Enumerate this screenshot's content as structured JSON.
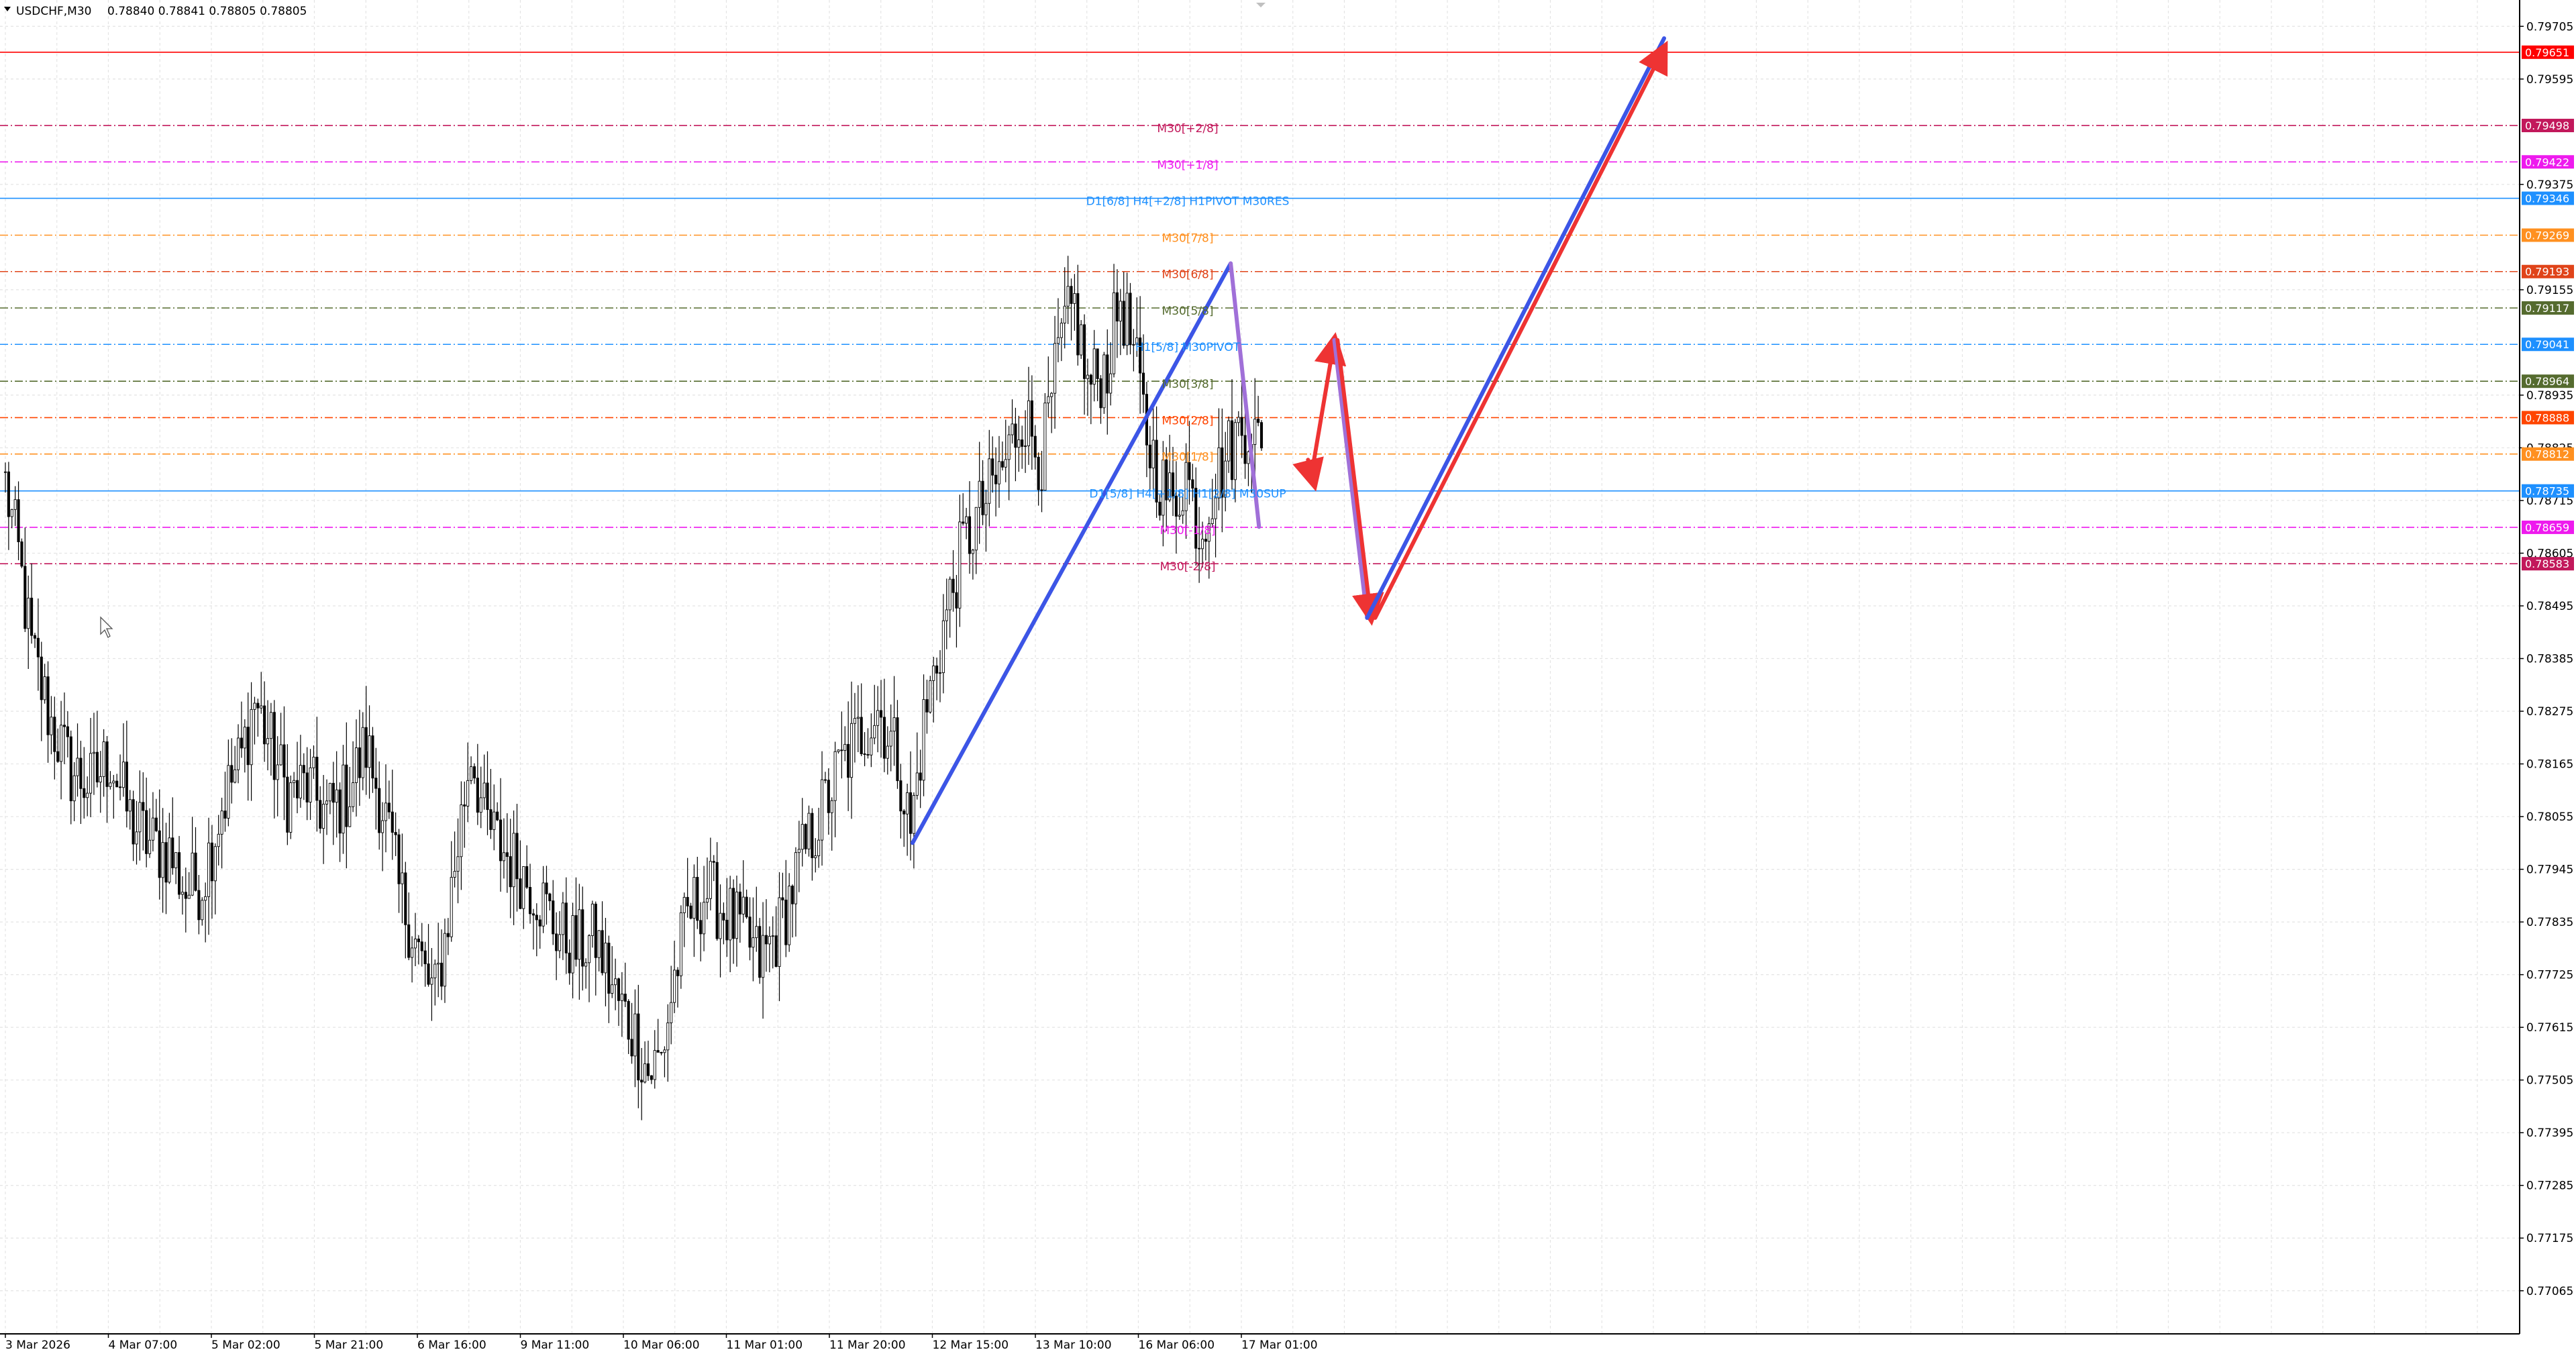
{
  "header": {
    "symbol_timeframe": "USDCHF,M30",
    "ohlc": "0.78840 0.78841 0.78805 0.78805"
  },
  "chart_data": {
    "type": "candlestick",
    "symbol": "USDCHF",
    "timeframe": "M30",
    "ylim": [
      0.76975,
      0.7976
    ],
    "grid": true,
    "price_axis_ticks": [
      "0.79705",
      "0.79595",
      "0.79375",
      "0.79155",
      "0.78935",
      "0.78825",
      "0.78715",
      "0.78605",
      "0.78495",
      "0.78385",
      "0.78275",
      "0.78165",
      "0.78055",
      "0.77945",
      "0.77835",
      "0.77725",
      "0.77615",
      "0.77505",
      "0.77395",
      "0.77285",
      "0.77175",
      "0.77065"
    ],
    "time_axis_ticks": [
      "3 Mar 2026",
      "4 Mar 07:00",
      "5 Mar 02:00",
      "5 Mar 21:00",
      "6 Mar 16:00",
      "9 Mar 11:00",
      "10 Mar 06:00",
      "11 Mar 01:00",
      "11 Mar 20:00",
      "12 Mar 15:00",
      "13 Mar 10:00",
      "16 Mar 06:00",
      "17 Mar 01:00"
    ],
    "close_anchors": [
      [
        0,
        0.7875
      ],
      [
        4,
        0.786
      ],
      [
        8,
        0.784
      ],
      [
        14,
        0.7825
      ],
      [
        20,
        0.7815
      ],
      [
        26,
        0.7812
      ],
      [
        32,
        0.7818
      ],
      [
        38,
        0.7805
      ],
      [
        44,
        0.78
      ],
      [
        50,
        0.7798
      ],
      [
        55,
        0.779
      ],
      [
        60,
        0.7792
      ],
      [
        66,
        0.7808
      ],
      [
        72,
        0.7818
      ],
      [
        76,
        0.783
      ],
      [
        80,
        0.7822
      ],
      [
        86,
        0.781
      ],
      [
        92,
        0.7812
      ],
      [
        98,
        0.7806
      ],
      [
        104,
        0.781
      ],
      [
        110,
        0.782
      ],
      [
        116,
        0.7805
      ],
      [
        120,
        0.779
      ],
      [
        124,
        0.7782
      ],
      [
        128,
        0.7772
      ],
      [
        131,
        0.7768
      ],
      [
        134,
        0.778
      ],
      [
        138,
        0.78
      ],
      [
        142,
        0.782
      ],
      [
        146,
        0.7805
      ],
      [
        150,
        0.78
      ],
      [
        156,
        0.7795
      ],
      [
        162,
        0.779
      ],
      [
        168,
        0.7782
      ],
      [
        174,
        0.7778
      ],
      [
        180,
        0.778
      ],
      [
        186,
        0.7768
      ],
      [
        192,
        0.776
      ],
      [
        196,
        0.7752
      ],
      [
        200,
        0.7755
      ],
      [
        204,
        0.7772
      ],
      [
        208,
        0.7785
      ],
      [
        214,
        0.779
      ],
      [
        220,
        0.7785
      ],
      [
        226,
        0.778
      ],
      [
        230,
        0.7775
      ],
      [
        236,
        0.7782
      ],
      [
        242,
        0.7795
      ],
      [
        248,
        0.7805
      ],
      [
        254,
        0.7815
      ],
      [
        260,
        0.7822
      ],
      [
        266,
        0.7828
      ],
      [
        272,
        0.7818
      ],
      [
        276,
        0.7802
      ],
      [
        280,
        0.7825
      ],
      [
        286,
        0.7845
      ],
      [
        292,
        0.7862
      ],
      [
        298,
        0.787
      ],
      [
        304,
        0.7878
      ],
      [
        310,
        0.789
      ],
      [
        316,
        0.788
      ],
      [
        322,
        0.7905
      ],
      [
        326,
        0.7912
      ],
      [
        330,
        0.7895
      ],
      [
        336,
        0.79
      ],
      [
        340,
        0.7914
      ],
      [
        344,
        0.7902
      ],
      [
        348,
        0.7885
      ],
      [
        352,
        0.7876
      ],
      [
        356,
        0.787
      ],
      [
        360,
        0.7878
      ],
      [
        364,
        0.7865
      ],
      [
        368,
        0.7874
      ],
      [
        372,
        0.788
      ],
      [
        376,
        0.7886
      ],
      [
        380,
        0.7888
      ],
      [
        383,
        0.788
      ]
    ],
    "levels": [
      {
        "label": "",
        "tag": "0.79651",
        "price": 0.79651,
        "color": "#ff0000",
        "style": "solid",
        "label_align": "none"
      },
      {
        "label": "M30[+2/8]",
        "tag": "0.79498",
        "price": 0.79498,
        "color": "#c2185b",
        "style": "dashdot",
        "label_align": "center"
      },
      {
        "label": "M30[+1/8]",
        "tag": "0.79422",
        "price": 0.79422,
        "color": "#ee1aee",
        "style": "dashdot",
        "label_align": "center"
      },
      {
        "label": "D1[6/8] H4[+2/8] H1PIVOT M30RES",
        "tag": "0.79346",
        "price": 0.79346,
        "color": "#1e90ff",
        "style": "solid",
        "label_align": "center"
      },
      {
        "label": "M30[7/8]",
        "tag": "0.79269",
        "price": 0.79269,
        "color": "#ff9020",
        "style": "dashdot",
        "label_align": "center"
      },
      {
        "label": "M30[6/8]",
        "tag": "0.79193",
        "price": 0.79193,
        "color": "#e0441a",
        "style": "dashdot",
        "label_align": "center"
      },
      {
        "label": "M30[5/8]",
        "tag": "0.79117",
        "price": 0.79117,
        "color": "#556b2f",
        "style": "dashdot",
        "label_align": "center"
      },
      {
        "label": "H1[5/8] M30PIVOT",
        "tag": "0.79041",
        "price": 0.79041,
        "color": "#1e90ff",
        "style": "dashdot",
        "label_align": "center"
      },
      {
        "label": "M30[3/8]",
        "tag": "0.78964",
        "price": 0.78964,
        "color": "#556b2f",
        "style": "dashdot",
        "label_align": "center"
      },
      {
        "label": "M30[2/8]",
        "tag": "0.78888",
        "price": 0.78888,
        "color": "#ff4500",
        "style": "dashdot",
        "label_align": "center"
      },
      {
        "label": "M30[1/8]",
        "tag": "0.78812",
        "price": 0.78812,
        "color": "#ff9020",
        "style": "dashdot",
        "label_align": "center"
      },
      {
        "label": "D1[5/8] H4[+1/8] H1[2/8] M30SUP",
        "tag": "0.78735",
        "price": 0.78735,
        "color": "#1e90ff",
        "style": "solid",
        "label_align": "center"
      },
      {
        "label": "M30[-1/8]",
        "tag": "0.78659",
        "price": 0.78659,
        "color": "#ee1aee",
        "style": "dashdot",
        "label_align": "center"
      },
      {
        "label": "M30[-2/8]",
        "tag": "0.78583",
        "price": 0.78583,
        "color": "#c2185b",
        "style": "dashdot",
        "label_align": "center"
      }
    ],
    "tag_colors": {
      "0.79651": "#ff0000",
      "0.79498": "#c2185b",
      "0.79422": "#ee1aee",
      "0.79346": "#1e90ff",
      "0.79269": "#ff9020",
      "0.79193": "#e0441a",
      "0.79117": "#556b2f",
      "0.79041": "#1e90ff",
      "0.78964": "#556b2f",
      "0.78888": "#ff4500",
      "0.78812": "#ff9020",
      "0.78735": "#1e90ff",
      "0.78659": "#ee1aee",
      "0.78583": "#c2185b"
    },
    "projection_lines": [
      {
        "color": "#3c55e6",
        "from": [
          0.0,
          0.78
        ],
        "to": [
          0.4233,
          0.7921
        ],
        "arrow": false
      },
      {
        "color": "#a070d8",
        "from": [
          0.4233,
          0.7921
        ],
        "to": [
          0.461,
          0.7866
        ],
        "arrow": false
      },
      {
        "color": "#ee3333",
        "from": [
          0.5262,
          0.788
        ],
        "to": [
          0.5342,
          0.7875
        ],
        "arrow": true
      },
      {
        "color": "#ee3333",
        "from": [
          0.5342,
          0.788
        ],
        "to": [
          0.5612,
          0.7905
        ],
        "arrow": true
      },
      {
        "color": "#a070d8",
        "from": [
          0.5612,
          0.7905
        ],
        "to": [
          0.6048,
          0.7847
        ],
        "arrow": false
      },
      {
        "color": "#ee3333",
        "from": [
          0.5654,
          0.7905
        ],
        "to": [
          0.61,
          0.7847
        ],
        "arrow": true
      },
      {
        "color": "#3c55e6",
        "from": [
          0.6048,
          0.7847
        ],
        "to": [
          1.0,
          0.7968
        ],
        "arrow": false
      },
      {
        "color": "#ee3333",
        "from": [
          0.6155,
          0.7847
        ],
        "to": [
          1.0,
          0.7966
        ],
        "arrow": true
      }
    ]
  }
}
